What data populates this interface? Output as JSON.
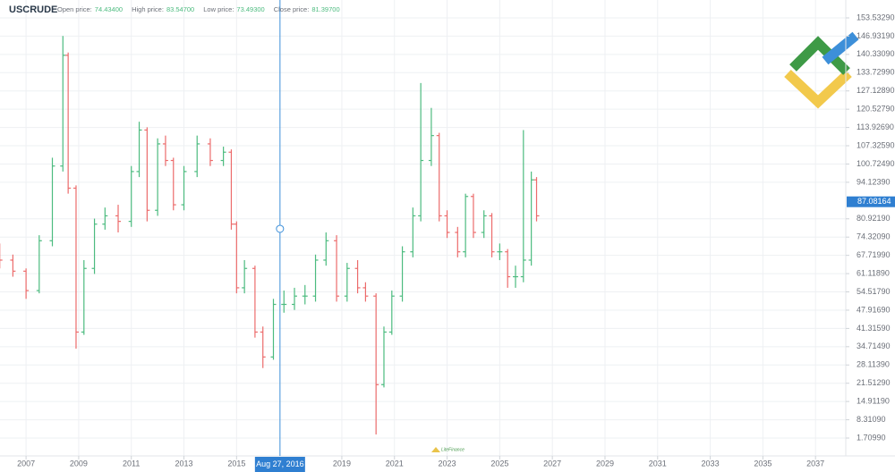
{
  "chart_data": {
    "type": "ohlc",
    "title": "USCRUDE",
    "stats": [
      {
        "label": "Open price:",
        "value": "74.43400"
      },
      {
        "label": "High price:",
        "value": "83.54700"
      },
      {
        "label": "Low price:",
        "value": "73.49300"
      },
      {
        "label": "Close price:",
        "value": "81.39700"
      }
    ],
    "up_color": "#4cbb7f",
    "down_color": "#ec6b6b",
    "x": [
      2006.0,
      2006.5,
      2007.0,
      2007.5,
      2008.0,
      2008.4,
      2008.6,
      2008.9,
      2009.2,
      2009.6,
      2010.0,
      2010.5,
      2011.0,
      2011.3,
      2011.6,
      2012.0,
      2012.3,
      2012.6,
      2013.0,
      2013.5,
      2014.0,
      2014.5,
      2014.8,
      2015.0,
      2015.3,
      2015.7,
      2016.0,
      2016.4,
      2016.8,
      2017.2,
      2017.6,
      2018.0,
      2018.4,
      2018.8,
      2019.2,
      2019.6,
      2019.9,
      2020.3,
      2020.6,
      2020.9,
      2021.3,
      2021.7,
      2022.0,
      2022.4,
      2022.7,
      2023.0,
      2023.4,
      2023.7,
      2024.0,
      2024.4,
      2024.7,
      2025.0,
      2025.3,
      2025.6,
      2025.9,
      2026.2,
      2026.4
    ],
    "open": [
      70,
      66,
      62,
      55,
      73,
      100,
      140,
      92,
      40,
      63,
      79,
      82,
      80,
      98,
      113,
      84,
      108,
      102,
      86,
      98,
      108,
      102,
      105,
      79,
      56,
      63,
      40,
      31,
      50,
      50,
      53,
      53,
      66,
      73,
      53,
      63,
      56,
      53,
      21,
      40,
      53,
      69,
      82,
      102,
      111,
      82,
      76,
      69,
      89,
      76,
      82,
      69,
      69,
      60,
      60,
      66,
      95
    ],
    "high": [
      72,
      68,
      63,
      75,
      103,
      147,
      141,
      93,
      66,
      81,
      85,
      86,
      100,
      116,
      114,
      110,
      111,
      103,
      100,
      111,
      110,
      107,
      106,
      80,
      66,
      64,
      42,
      52,
      55,
      56,
      57,
      68,
      76,
      75,
      65,
      66,
      58,
      54,
      42,
      55,
      71,
      85,
      130,
      121,
      112,
      84,
      78,
      90,
      90,
      84,
      83,
      72,
      70,
      64,
      113,
      98,
      96
    ],
    "low": [
      63,
      60,
      52,
      54,
      71,
      98,
      90,
      34,
      39,
      61,
      77,
      76,
      78,
      96,
      80,
      82,
      100,
      84,
      84,
      96,
      100,
      100,
      77,
      54,
      54,
      38,
      27,
      30,
      47,
      48,
      50,
      51,
      64,
      51,
      51,
      54,
      51,
      3,
      20,
      39,
      51,
      67,
      80,
      100,
      80,
      74,
      67,
      67,
      74,
      74,
      67,
      66,
      56,
      56,
      58,
      64,
      80
    ],
    "close": [
      66,
      62,
      55,
      73,
      100,
      140,
      92,
      40,
      63,
      79,
      82,
      80,
      98,
      113,
      84,
      108,
      102,
      86,
      98,
      108,
      102,
      105,
      79,
      56,
      63,
      40,
      31,
      50,
      50,
      53,
      53,
      66,
      73,
      53,
      63,
      56,
      53,
      21,
      40,
      53,
      69,
      82,
      102,
      111,
      82,
      76,
      69,
      89,
      76,
      82,
      69,
      69,
      60,
      60,
      66,
      95,
      82
    ],
    "xlim": [
      2006.01,
      2038.15
    ],
    "xticks": [
      2007,
      2009,
      2011,
      2013,
      2015,
      2019,
      2021,
      2023,
      2025,
      2027,
      2029,
      2031,
      2033,
      2035,
      2037
    ],
    "ylim": [
      -4.75,
      159.99
    ],
    "yticks": [
      {
        "value": 153.5329,
        "label": "153.53290"
      },
      {
        "value": 146.9319,
        "label": "146.93190"
      },
      {
        "value": 140.3309,
        "label": "140.33090"
      },
      {
        "value": 133.7299,
        "label": "133.72990"
      },
      {
        "value": 127.1289,
        "label": "127.12890"
      },
      {
        "value": 120.5279,
        "label": "120.52790"
      },
      {
        "value": 113.9269,
        "label": "113.92690"
      },
      {
        "value": 107.3259,
        "label": "107.32590"
      },
      {
        "value": 100.7249,
        "label": "100.72490"
      },
      {
        "value": 94.1239,
        "label": "94.12390"
      },
      {
        "value": 80.9219,
        "label": "80.92190"
      },
      {
        "value": 74.3209,
        "label": "74.32090"
      },
      {
        "value": 67.7199,
        "label": "67.71990"
      },
      {
        "value": 61.1189,
        "label": "61.11890"
      },
      {
        "value": 54.5179,
        "label": "54.51790"
      },
      {
        "value": 47.9169,
        "label": "47.91690"
      },
      {
        "value": 41.3159,
        "label": "41.31590"
      },
      {
        "value": 34.7149,
        "label": "34.71490"
      },
      {
        "value": 28.1139,
        "label": "28.11390"
      },
      {
        "value": 21.5129,
        "label": "21.51290"
      },
      {
        "value": 14.9119,
        "label": "14.91190"
      },
      {
        "value": 8.3109,
        "label": "8.31090"
      },
      {
        "value": 1.7099,
        "label": "1.70990"
      }
    ],
    "grid": true,
    "last_price": {
      "value": 87.08164,
      "label": "87.08164"
    },
    "crosshair": {
      "x": 2016.65,
      "y": 77.3,
      "label": "Aug 27, 2016"
    },
    "watermark": "LiteFinance"
  }
}
